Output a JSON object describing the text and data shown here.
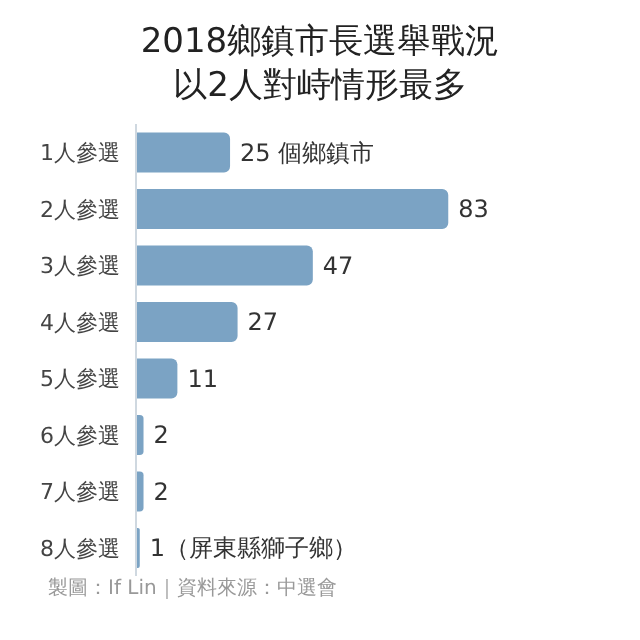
{
  "chart_data": {
    "type": "bar",
    "orientation": "horizontal",
    "title": "2018鄉鎮市長選舉戰況",
    "subtitle": "以2人對峙情形最多",
    "categories": [
      "1人參選",
      "2人參選",
      "3人參選",
      "4人參選",
      "5人參選",
      "6人參選",
      "7人參選",
      "8人參選"
    ],
    "values": [
      25,
      83,
      47,
      27,
      11,
      2,
      2,
      1
    ],
    "value_labels": [
      "25 個鄉鎮市",
      "83",
      "47",
      "27",
      "11",
      "2",
      "2",
      "1（屏東縣獅子鄉）"
    ],
    "color": "#7ba3c4",
    "annotations": [
      "製圖：If Lin｜資料來源：中選會"
    ]
  }
}
